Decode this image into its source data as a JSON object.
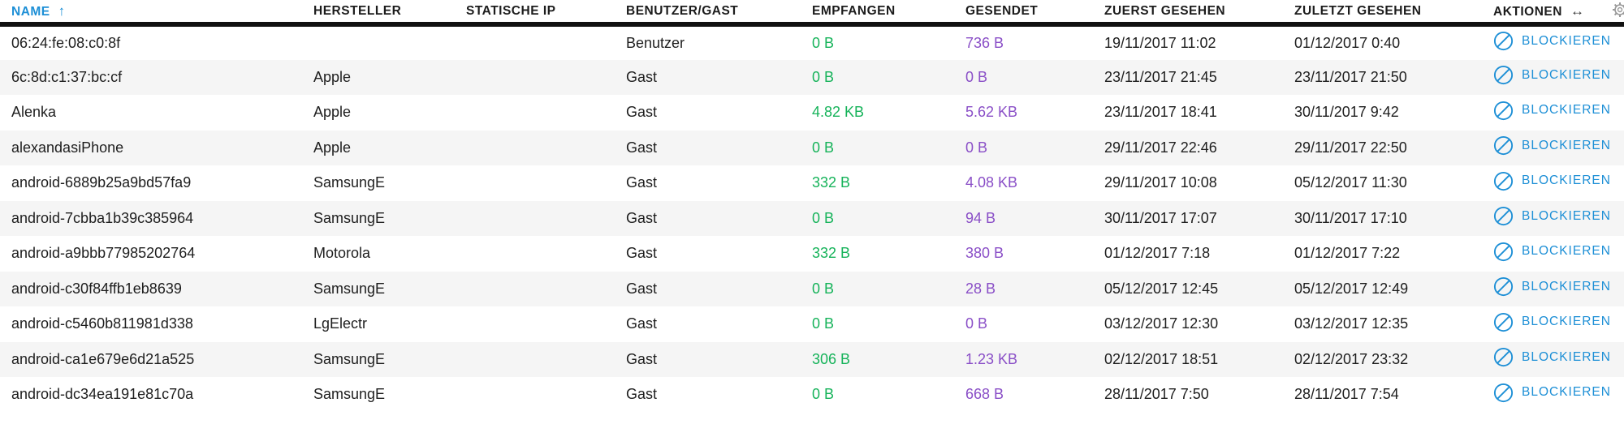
{
  "columns": {
    "name": "NAME",
    "manufacturer": "HERSTELLER",
    "static_ip": "STATISCHE IP",
    "user_guest": "BENUTZER/GAST",
    "received": "EMPFANGEN",
    "sent": "GESENDET",
    "first_seen": "ZUERST GESEHEN",
    "last_seen": "ZULETZT GESEHEN",
    "actions": "AKTIONEN"
  },
  "sort": {
    "column": "name",
    "direction": "ascending",
    "indicator": "↑"
  },
  "actions_resize_glyph": "↔",
  "colors": {
    "accent": "#1d8fd6",
    "received": "#16b35a",
    "sent": "#8a4fc7",
    "row_alt": "#f5f5f5"
  },
  "rows": [
    {
      "name": "06:24:fe:08:c0:8f",
      "manufacturer": "",
      "static_ip": "",
      "user_guest": "Benutzer",
      "received": "0 B",
      "sent": "736 B",
      "first_seen": "19/11/2017 11:02",
      "last_seen": "01/12/2017 0:40",
      "action": "BLOCKIEREN"
    },
    {
      "name": "6c:8d:c1:37:bc:cf",
      "manufacturer": "Apple",
      "static_ip": "",
      "user_guest": "Gast",
      "received": "0 B",
      "sent": "0 B",
      "first_seen": "23/11/2017 21:45",
      "last_seen": "23/11/2017 21:50",
      "action": "BLOCKIEREN"
    },
    {
      "name": "Alenka",
      "manufacturer": "Apple",
      "static_ip": "",
      "user_guest": "Gast",
      "received": "4.82 KB",
      "sent": "5.62 KB",
      "first_seen": "23/11/2017 18:41",
      "last_seen": "30/11/2017 9:42",
      "action": "BLOCKIEREN"
    },
    {
      "name": "alexandasiPhone",
      "manufacturer": "Apple",
      "static_ip": "",
      "user_guest": "Gast",
      "received": "0 B",
      "sent": "0 B",
      "first_seen": "29/11/2017 22:46",
      "last_seen": "29/11/2017 22:50",
      "action": "BLOCKIEREN"
    },
    {
      "name": "android-6889b25a9bd57fa9",
      "manufacturer": "SamsungE",
      "static_ip": "",
      "user_guest": "Gast",
      "received": "332 B",
      "sent": "4.08 KB",
      "first_seen": "29/11/2017 10:08",
      "last_seen": "05/12/2017 11:30",
      "action": "BLOCKIEREN"
    },
    {
      "name": "android-7cbba1b39c385964",
      "manufacturer": "SamsungE",
      "static_ip": "",
      "user_guest": "Gast",
      "received": "0 B",
      "sent": "94 B",
      "first_seen": "30/11/2017 17:07",
      "last_seen": "30/11/2017 17:10",
      "action": "BLOCKIEREN"
    },
    {
      "name": "android-a9bbb77985202764",
      "manufacturer": "Motorola",
      "static_ip": "",
      "user_guest": "Gast",
      "received": "332 B",
      "sent": "380 B",
      "first_seen": "01/12/2017 7:18",
      "last_seen": "01/12/2017 7:22",
      "action": "BLOCKIEREN"
    },
    {
      "name": "android-c30f84ffb1eb8639",
      "manufacturer": "SamsungE",
      "static_ip": "",
      "user_guest": "Gast",
      "received": "0 B",
      "sent": "28 B",
      "first_seen": "05/12/2017 12:45",
      "last_seen": "05/12/2017 12:49",
      "action": "BLOCKIEREN"
    },
    {
      "name": "android-c5460b811981d338",
      "manufacturer": "LgElectr",
      "static_ip": "",
      "user_guest": "Gast",
      "received": "0 B",
      "sent": "0 B",
      "first_seen": "03/12/2017 12:30",
      "last_seen": "03/12/2017 12:35",
      "action": "BLOCKIEREN"
    },
    {
      "name": "android-ca1e679e6d21a525",
      "manufacturer": "SamsungE",
      "static_ip": "",
      "user_guest": "Gast",
      "received": "306 B",
      "sent": "1.23 KB",
      "first_seen": "02/12/2017 18:51",
      "last_seen": "02/12/2017 23:32",
      "action": "BLOCKIEREN"
    },
    {
      "name": "android-dc34ea191e81c70a",
      "manufacturer": "SamsungE",
      "static_ip": "",
      "user_guest": "Gast",
      "received": "0 B",
      "sent": "668 B",
      "first_seen": "28/11/2017 7:50",
      "last_seen": "28/11/2017 7:54",
      "action": "BLOCKIEREN"
    }
  ]
}
